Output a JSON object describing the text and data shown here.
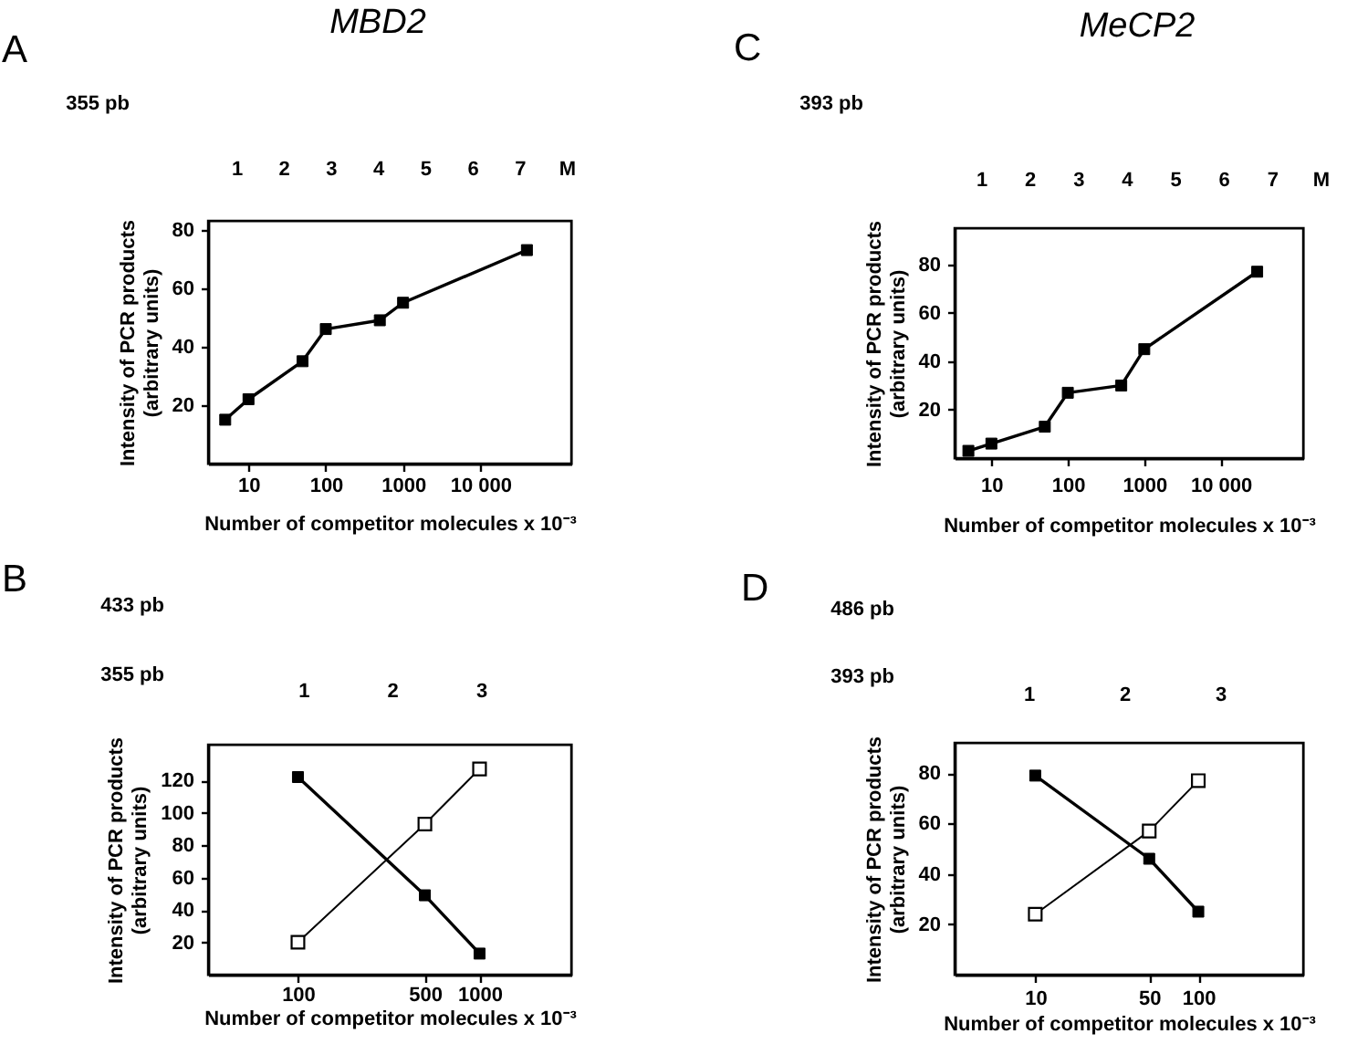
{
  "chart_data": [
    {
      "type": "line",
      "title": "MBD2",
      "annotations": [
        "A",
        "355 pb",
        "1",
        "2",
        "3",
        "4",
        "5",
        "6",
        "7",
        "M"
      ],
      "xlabel": "Number of competitor molecules x 10⁻³",
      "ylabel": "Intensity of PCR products\n(arbitrary units)",
      "log": "x",
      "xlim": [
        3,
        150000
      ],
      "xticks": [
        10,
        100,
        1000,
        {
          "value": 10000,
          "label": "10 000"
        }
      ],
      "ylim": [
        0,
        83
      ],
      "yticks": [
        20,
        40,
        60,
        80
      ],
      "marker": "square",
      "series": [
        {
          "color": "#000000",
          "x": [
            5,
            10,
            50,
            100,
            500,
            1000,
            40000
          ],
          "values": [
            15,
            22,
            35,
            46,
            49,
            55,
            73
          ]
        }
      ]
    },
    {
      "type": "line",
      "title": "MeCP2",
      "annotations": [
        "C",
        "393 pb",
        "1",
        "2",
        "3",
        "4",
        "5",
        "6",
        "7",
        "M"
      ],
      "xlabel": "Number of competitor molecules x 10⁻³",
      "ylabel": "Intensity of PCR products\n(arbitrary units)",
      "log": "x",
      "xlim": [
        3.3,
        120000
      ],
      "xticks": [
        10,
        100,
        1000,
        {
          "value": 10000,
          "label": "10 000"
        }
      ],
      "ylim": [
        0,
        95
      ],
      "yticks": [
        20,
        40,
        60,
        80
      ],
      "marker": "square",
      "series": [
        {
          "color": "#000000",
          "x": [
            5,
            10,
            50,
            100,
            500,
            1000,
            30000
          ],
          "values": [
            3,
            6,
            13,
            27,
            30,
            45,
            77
          ]
        }
      ]
    },
    {
      "type": "line",
      "annotations": [
        "B",
        "433 pb",
        "355 pb",
        "1",
        "2",
        "3"
      ],
      "xlabel": "Number of competitor molecules x 10⁻³",
      "ylabel": "Intensity of PCR products\n(arbitrary units)",
      "log": "x",
      "xlim": [
        32,
        3200
      ],
      "xticks": [
        100,
        500,
        1000
      ],
      "ylim": [
        0,
        142
      ],
      "yticks": [
        20,
        40,
        60,
        80,
        100,
        120
      ],
      "marker": "square",
      "x": [
        100,
        500,
        1000
      ],
      "series": [
        {
          "color": "#000000",
          "values": [
            122,
            49,
            13
          ]
        },
        {
          "color": "#ffffff",
          "values": [
            20,
            93,
            127
          ]
        }
      ]
    },
    {
      "type": "line",
      "annotations": [
        "D",
        "486 pb",
        "393 pb",
        "1",
        "2",
        "3"
      ],
      "xlabel": "Number of competitor molecules x 10⁻³",
      "ylabel": "Intensity of PCR products\n(arbitrary units)",
      "log": "x",
      "xlim": [
        3.2,
        440
      ],
      "xticks": [
        10,
        50,
        100
      ],
      "ylim": [
        0,
        92
      ],
      "yticks": [
        20,
        40,
        60,
        80
      ],
      "marker": "square",
      "x": [
        10,
        50,
        100
      ],
      "series": [
        {
          "color": "#000000",
          "values": [
            79,
            46,
            25
          ]
        },
        {
          "color": "#ffffff",
          "values": [
            24,
            57,
            77
          ]
        }
      ]
    }
  ]
}
